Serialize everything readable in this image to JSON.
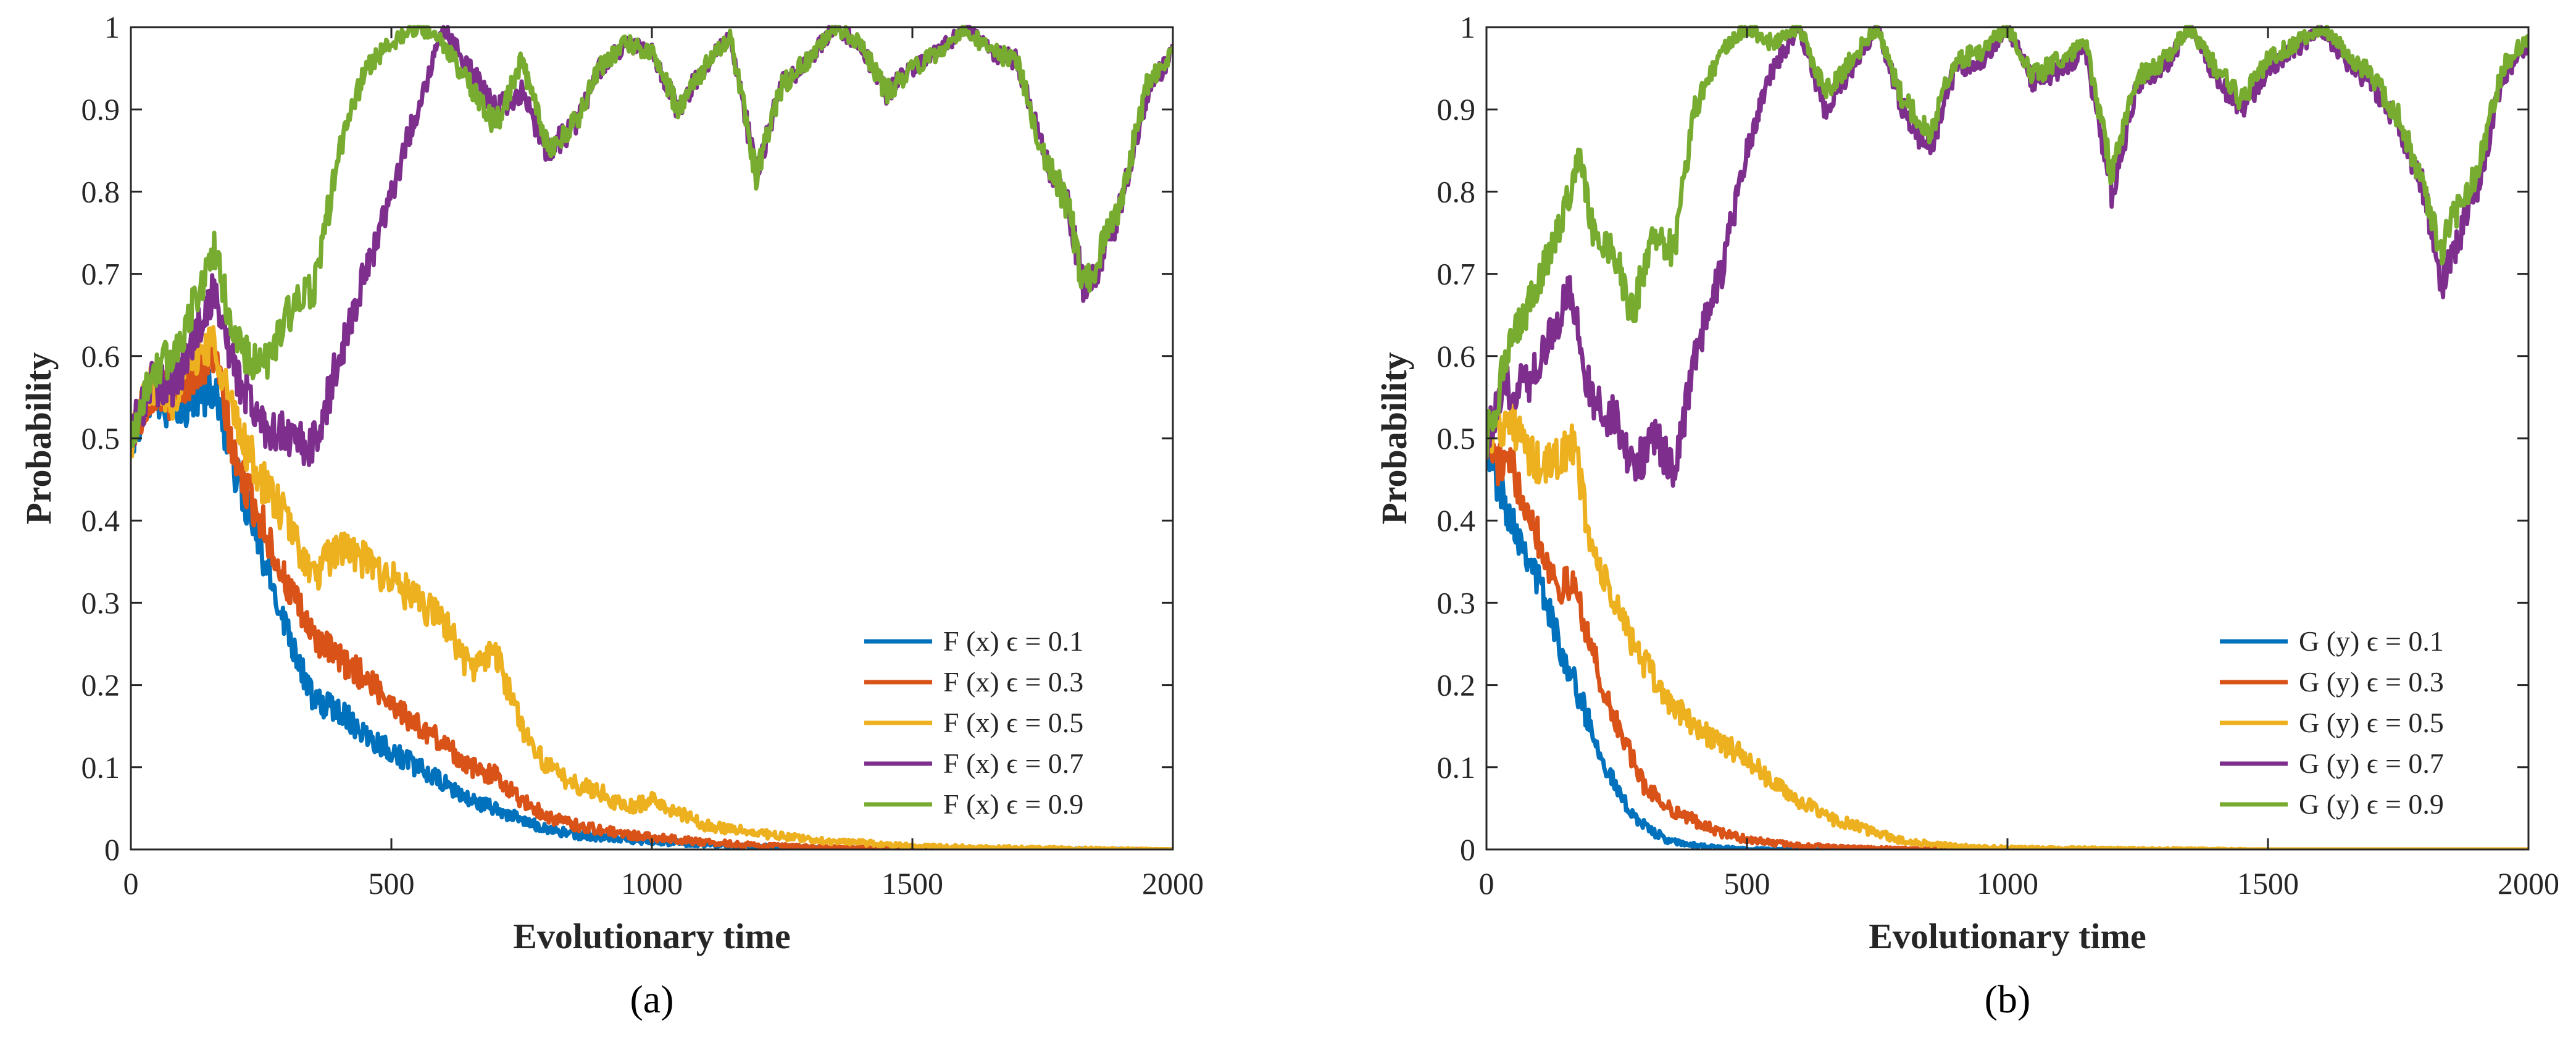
{
  "chart_data": [
    {
      "type": "line",
      "id": "a",
      "caption": "(a)",
      "xlabel": "Evolutionary time",
      "ylabel": "Probability",
      "xlim": [
        0,
        2000
      ],
      "ylim": [
        0,
        1
      ],
      "xticks": [
        "0",
        "500",
        "1000",
        "1500",
        "2000"
      ],
      "yticks": [
        "0",
        "0.1",
        "0.2",
        "0.3",
        "0.4",
        "0.5",
        "0.6",
        "0.7",
        "0.8",
        "0.9",
        "1"
      ],
      "grid": false,
      "legend_position": "bottom-right",
      "series": [
        {
          "name": "F (x) ϵ = 0.1",
          "color": "#0072BD",
          "x": [
            0,
            40,
            80,
            120,
            160,
            200,
            250,
            300,
            350,
            400,
            450,
            500,
            550,
            600,
            650,
            700,
            750,
            800,
            850,
            900,
            950,
            1000,
            1100,
            1200,
            1300,
            1500,
            2000
          ],
          "y": [
            0.5,
            0.56,
            0.53,
            0.55,
            0.56,
            0.46,
            0.36,
            0.27,
            0.18,
            0.17,
            0.14,
            0.12,
            0.1,
            0.08,
            0.06,
            0.05,
            0.035,
            0.025,
            0.018,
            0.015,
            0.012,
            0.01,
            0.006,
            0.004,
            0.002,
            0.001,
            0.0
          ]
        },
        {
          "name": "F (x) ϵ = 0.3",
          "color": "#D95319",
          "x": [
            0,
            40,
            80,
            120,
            160,
            200,
            250,
            300,
            350,
            400,
            450,
            500,
            550,
            600,
            650,
            700,
            750,
            800,
            850,
            900,
            950,
            1000,
            1100,
            1200,
            1300,
            1500,
            2000
          ],
          "y": [
            0.5,
            0.56,
            0.55,
            0.58,
            0.6,
            0.47,
            0.4,
            0.32,
            0.26,
            0.23,
            0.21,
            0.18,
            0.15,
            0.13,
            0.1,
            0.09,
            0.06,
            0.04,
            0.03,
            0.024,
            0.018,
            0.015,
            0.009,
            0.005,
            0.003,
            0.001,
            0.0
          ]
        },
        {
          "name": "F (x) ϵ = 0.5",
          "color": "#EDB120",
          "x": [
            0,
            40,
            80,
            120,
            160,
            200,
            250,
            300,
            350,
            400,
            450,
            500,
            550,
            600,
            650,
            700,
            750,
            800,
            850,
            900,
            950,
            1000,
            1100,
            1200,
            1300,
            1400,
            1500,
            1700,
            2000
          ],
          "y": [
            0.5,
            0.57,
            0.55,
            0.6,
            0.62,
            0.52,
            0.45,
            0.4,
            0.33,
            0.37,
            0.35,
            0.33,
            0.3,
            0.28,
            0.22,
            0.24,
            0.15,
            0.1,
            0.08,
            0.07,
            0.05,
            0.06,
            0.03,
            0.02,
            0.012,
            0.008,
            0.004,
            0.002,
            0.0
          ]
        },
        {
          "name": "F (x) ϵ = 0.7",
          "color": "#7E2F8E",
          "x": [
            0,
            40,
            80,
            120,
            160,
            200,
            250,
            300,
            350,
            380,
            400,
            450,
            500,
            550,
            600,
            650,
            700,
            750,
            800,
            850,
            900,
            950,
            1000,
            1050,
            1100,
            1150,
            1200,
            1250,
            1300,
            1350,
            1400,
            1450,
            1500,
            1550,
            1600,
            1650,
            1700,
            1750,
            1800,
            1830,
            1850,
            1900,
            1950,
            2000
          ],
          "y": [
            0.5,
            0.57,
            0.56,
            0.62,
            0.68,
            0.58,
            0.52,
            0.5,
            0.49,
            0.55,
            0.6,
            0.7,
            0.8,
            0.9,
            1.0,
            0.95,
            0.9,
            0.92,
            0.85,
            0.88,
            0.95,
            0.98,
            0.97,
            0.9,
            0.95,
            0.99,
            0.82,
            0.93,
            0.96,
            1.0,
            0.98,
            0.92,
            0.95,
            0.97,
            1.0,
            0.97,
            0.96,
            0.85,
            0.78,
            0.68,
            0.7,
            0.78,
            0.92,
            0.97
          ]
        },
        {
          "name": "F (x) ϵ = 0.9",
          "color": "#77AC30",
          "x": [
            0,
            40,
            80,
            120,
            160,
            200,
            250,
            300,
            350,
            380,
            400,
            450,
            500,
            550,
            600,
            650,
            700,
            750,
            800,
            850,
            900,
            950,
            1000,
            1050,
            1100,
            1150,
            1200,
            1250,
            1300,
            1350,
            1400,
            1450,
            1500,
            1550,
            1600,
            1650,
            1700,
            1750,
            1800,
            1830,
            1850,
            1900,
            1950,
            2000
          ],
          "y": [
            0.5,
            0.58,
            0.6,
            0.66,
            0.73,
            0.62,
            0.58,
            0.65,
            0.68,
            0.78,
            0.85,
            0.95,
            0.98,
            1.0,
            0.98,
            0.93,
            0.88,
            0.96,
            0.85,
            0.88,
            0.95,
            0.98,
            0.97,
            0.9,
            0.95,
            0.99,
            0.82,
            0.93,
            0.96,
            1.0,
            0.98,
            0.92,
            0.95,
            0.97,
            1.0,
            0.97,
            0.96,
            0.85,
            0.78,
            0.68,
            0.71,
            0.79,
            0.93,
            0.97
          ]
        }
      ]
    },
    {
      "type": "line",
      "id": "b",
      "caption": "(b)",
      "xlabel": "Evolutionary time",
      "ylabel": "Probability",
      "xlim": [
        0,
        2000
      ],
      "ylim": [
        0,
        1
      ],
      "xticks": [
        "0",
        "500",
        "1000",
        "1500",
        "2000"
      ],
      "yticks": [
        "0",
        "0.1",
        "0.2",
        "0.3",
        "0.4",
        "0.5",
        "0.6",
        "0.7",
        "0.8",
        "0.9",
        "1"
      ],
      "grid": false,
      "legend_position": "bottom-right",
      "series": [
        {
          "name": "G (y) ϵ = 0.1",
          "color": "#0072BD",
          "x": [
            0,
            20,
            50,
            80,
            110,
            140,
            170,
            200,
            230,
            260,
            300,
            350,
            400,
            450,
            500,
            600,
            700,
            800,
            1000,
            2000
          ],
          "y": [
            0.5,
            0.45,
            0.4,
            0.36,
            0.31,
            0.25,
            0.2,
            0.15,
            0.1,
            0.06,
            0.03,
            0.01,
            0.005,
            0.002,
            0.001,
            0.0,
            0.0,
            0.0,
            0.0,
            0.0
          ]
        },
        {
          "name": "G (y) ϵ = 0.3",
          "color": "#D95319",
          "x": [
            0,
            20,
            50,
            80,
            110,
            140,
            170,
            200,
            230,
            260,
            300,
            350,
            400,
            450,
            500,
            550,
            600,
            700,
            800,
            1000,
            2000
          ],
          "y": [
            0.5,
            0.47,
            0.46,
            0.42,
            0.36,
            0.32,
            0.32,
            0.25,
            0.18,
            0.14,
            0.08,
            0.05,
            0.035,
            0.02,
            0.012,
            0.008,
            0.005,
            0.002,
            0.001,
            0.0,
            0.0
          ]
        },
        {
          "name": "G (y) ϵ = 0.5",
          "color": "#EDB120",
          "x": [
            0,
            20,
            50,
            80,
            110,
            140,
            170,
            200,
            230,
            260,
            300,
            350,
            400,
            450,
            500,
            550,
            600,
            650,
            700,
            750,
            800,
            900,
            1000,
            1200,
            1500,
            2000
          ],
          "y": [
            0.5,
            0.52,
            0.52,
            0.48,
            0.46,
            0.48,
            0.49,
            0.37,
            0.32,
            0.28,
            0.23,
            0.18,
            0.15,
            0.13,
            0.11,
            0.08,
            0.06,
            0.04,
            0.03,
            0.02,
            0.01,
            0.004,
            0.002,
            0.001,
            0.0,
            0.0
          ]
        },
        {
          "name": "G (y) ϵ = 0.7",
          "color": "#7E2F8E",
          "x": [
            0,
            40,
            80,
            120,
            160,
            200,
            250,
            280,
            320,
            360,
            400,
            450,
            500,
            550,
            600,
            650,
            700,
            750,
            800,
            850,
            900,
            950,
            1000,
            1050,
            1100,
            1150,
            1200,
            1250,
            1300,
            1350,
            1400,
            1450,
            1500,
            1550,
            1600,
            1650,
            1700,
            1750,
            1800,
            1830,
            1850,
            1900,
            1950,
            2000
          ],
          "y": [
            0.5,
            0.56,
            0.57,
            0.62,
            0.68,
            0.55,
            0.52,
            0.46,
            0.5,
            0.46,
            0.6,
            0.7,
            0.85,
            0.95,
            1.0,
            0.9,
            0.95,
            1.0,
            0.9,
            0.85,
            0.95,
            0.96,
            1.0,
            0.93,
            0.95,
            0.97,
            0.8,
            0.93,
            0.95,
            1.0,
            0.94,
            0.9,
            0.95,
            0.97,
            1.0,
            0.96,
            0.93,
            0.88,
            0.8,
            0.68,
            0.72,
            0.8,
            0.94,
            0.98
          ]
        },
        {
          "name": "G (y) ϵ = 0.9",
          "color": "#77AC30",
          "x": [
            0,
            40,
            80,
            120,
            160,
            180,
            200,
            250,
            280,
            320,
            360,
            400,
            450,
            500,
            550,
            600,
            650,
            700,
            750,
            800,
            850,
            900,
            950,
            1000,
            1050,
            1100,
            1150,
            1200,
            1250,
            1300,
            1350,
            1400,
            1450,
            1500,
            1550,
            1600,
            1650,
            1700,
            1750,
            1800,
            1830,
            1850,
            1900,
            1950,
            2000
          ],
          "y": [
            0.5,
            0.6,
            0.66,
            0.72,
            0.8,
            0.85,
            0.76,
            0.72,
            0.65,
            0.75,
            0.73,
            0.9,
            0.97,
            1.0,
            0.98,
            1.0,
            0.92,
            0.96,
            1.0,
            0.91,
            0.87,
            0.96,
            0.97,
            1.0,
            0.94,
            0.96,
            0.98,
            0.82,
            0.94,
            0.96,
            1.0,
            0.95,
            0.91,
            0.96,
            0.98,
            1.0,
            0.97,
            0.94,
            0.89,
            0.81,
            0.72,
            0.76,
            0.82,
            0.95,
            0.99
          ]
        }
      ]
    }
  ]
}
